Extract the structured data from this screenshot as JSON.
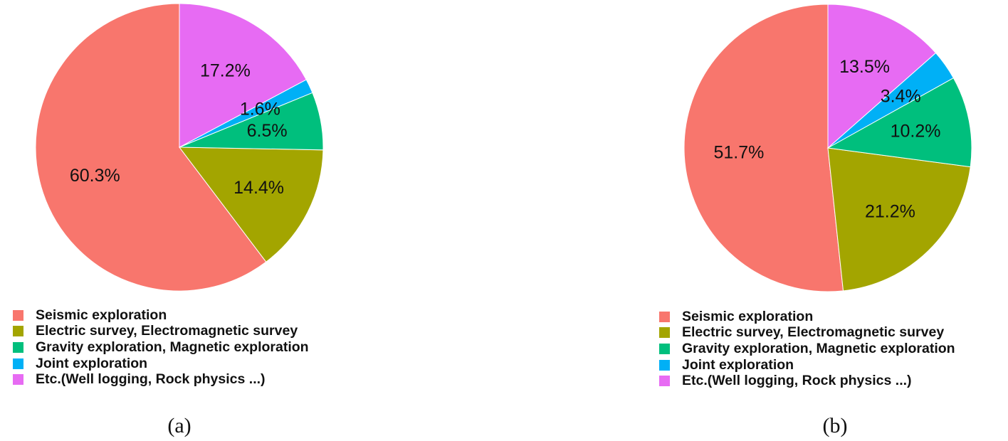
{
  "chart_data": [
    {
      "type": "pie",
      "caption": "(a)",
      "categories": [
        "Seismic exploration",
        "Electric survey, Electromagnetic survey",
        "Gravity exploration, Magnetic exploration",
        "Joint exploration",
        "Etc.(Well logging, Rock physics ...)"
      ],
      "values": [
        60.3,
        14.4,
        6.5,
        1.6,
        17.2
      ],
      "labels": [
        "60.3%",
        "14.4%",
        "6.5%",
        "1.6%",
        "17.2%"
      ],
      "colors": [
        "#F8766D",
        "#A3A500",
        "#00BF7D",
        "#00B0F6",
        "#E76BF3"
      ],
      "start": "12 o'clock",
      "direction": "counterclockwise",
      "legend_position": "bottom-left"
    },
    {
      "type": "pie",
      "caption": "(b)",
      "categories": [
        "Seismic exploration",
        "Electric survey, Electromagnetic survey",
        "Gravity exploration, Magnetic exploration",
        "Joint exploration",
        "Etc.(Well logging, Rock physics ...)"
      ],
      "values": [
        51.7,
        21.2,
        10.2,
        3.4,
        13.5
      ],
      "labels": [
        "51.7%",
        "21.2%",
        "10.2%",
        "3.4%",
        "13.5%"
      ],
      "colors": [
        "#F8766D",
        "#A3A500",
        "#00BF7D",
        "#00B0F6",
        "#E76BF3"
      ],
      "start": "12 o'clock",
      "direction": "counterclockwise",
      "legend_position": "bottom-left"
    }
  ]
}
